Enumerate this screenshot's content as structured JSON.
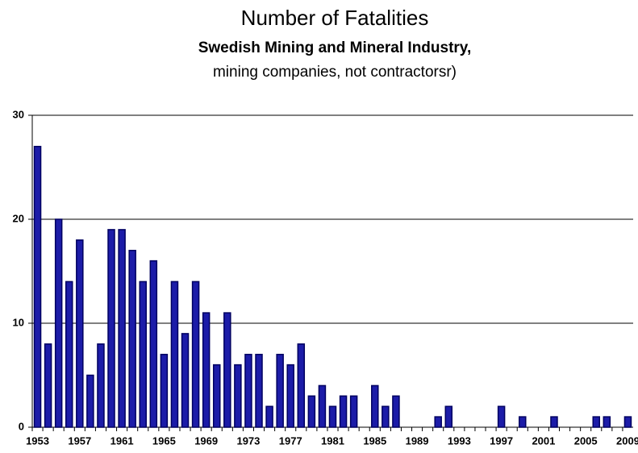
{
  "chart_data": {
    "type": "bar",
    "title": "Number of Fatalities",
    "subtitle": "Swedish Mining and Mineral Industry,",
    "note": "mining companies, not contractorsr)",
    "categories": [
      "1953",
      null,
      null,
      null,
      "1957",
      null,
      null,
      null,
      "1961",
      null,
      null,
      null,
      "1965",
      null,
      null,
      null,
      "1969",
      null,
      null,
      null,
      "1973",
      null,
      null,
      null,
      "1977",
      null,
      null,
      null,
      "1981",
      null,
      null,
      null,
      "1985",
      null,
      null,
      null,
      "1989",
      null,
      null,
      null,
      "1993",
      null,
      null,
      null,
      "1997",
      null,
      null,
      null,
      "2001",
      null,
      null,
      null,
      "2005",
      null,
      null,
      null,
      "2009"
    ],
    "values": [
      27,
      8,
      20,
      14,
      18,
      5,
      8,
      19,
      19,
      17,
      14,
      16,
      7,
      14,
      9,
      14,
      11,
      6,
      11,
      6,
      7,
      7,
      2,
      7,
      6,
      8,
      3,
      4,
      2,
      3,
      3,
      0,
      4,
      2,
      3,
      0,
      0,
      0,
      1,
      2,
      0,
      0,
      0,
      0,
      2,
      0,
      1,
      0,
      0,
      1,
      0,
      0,
      0,
      1,
      1,
      0,
      1
    ],
    "color": "#1c1ca8",
    "ylim": [
      0,
      30
    ],
    "yticks": [
      0,
      10,
      20,
      30
    ],
    "grid": true
  }
}
